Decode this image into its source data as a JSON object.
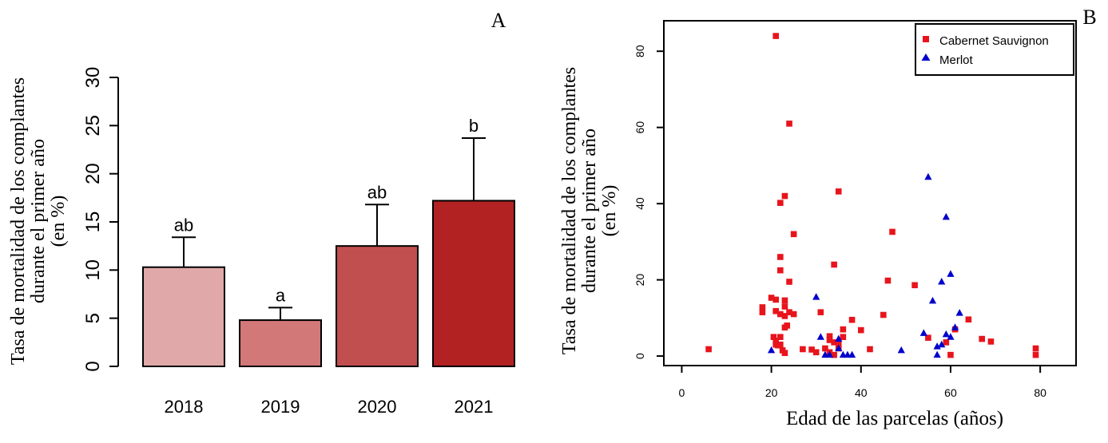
{
  "chart_data": [
    {
      "type": "bar",
      "panel_label": "A",
      "categories": [
        "2018",
        "2019",
        "2020",
        "2021"
      ],
      "values": [
        10.3,
        4.8,
        12.5,
        17.2
      ],
      "error_upper": [
        13.4,
        6.1,
        16.8,
        23.7
      ],
      "significance": [
        "ab",
        "a",
        "ab",
        "b"
      ],
      "colors": [
        "#e0a8a8",
        "#d27878",
        "#c24f4f",
        "#b22222"
      ],
      "ylabel_lines": [
        "Tasa de mortalidad de los complantes",
        "durante el primer año",
        "(en %)"
      ],
      "xlabel": "",
      "ylim": [
        0,
        30
      ],
      "yticks": [
        "0",
        "5",
        "10",
        "15",
        "20",
        "25",
        "30"
      ]
    },
    {
      "type": "scatter",
      "panel_label": "B",
      "xlabel": "Edad de las parcelas (años)",
      "ylabel_lines": [
        "Tasa de mortalidad de los complantes",
        "durante el primer año",
        "(en %)"
      ],
      "xlim": [
        -4,
        88
      ],
      "ylim": [
        -2.5,
        88
      ],
      "xticks": [
        "0",
        "20",
        "40",
        "60",
        "80"
      ],
      "yticks": [
        "0",
        "20",
        "40",
        "60",
        "80"
      ],
      "legend_position": "top-right",
      "series": [
        {
          "name": "Cabernet Sauvignon",
          "color": "#e8141c",
          "marker": "square",
          "points": [
            [
              6,
              1.8
            ],
            [
              18,
              11.5
            ],
            [
              18,
              12.8
            ],
            [
              20,
              15.3
            ],
            [
              20.5,
              5
            ],
            [
              21,
              84
            ],
            [
              21,
              14.8
            ],
            [
              21,
              11.8
            ],
            [
              21,
              4
            ],
            [
              21,
              3
            ],
            [
              21.5,
              2.8
            ],
            [
              22,
              40.2
            ],
            [
              22,
              26
            ],
            [
              22,
              22.5
            ],
            [
              22,
              11
            ],
            [
              22,
              5
            ],
            [
              22,
              3
            ],
            [
              22.5,
              1.5
            ],
            [
              23,
              42
            ],
            [
              23,
              14.6
            ],
            [
              23,
              13
            ],
            [
              23,
              10.5
            ],
            [
              23,
              7.5
            ],
            [
              23,
              0.8
            ],
            [
              23.5,
              8
            ],
            [
              24,
              61
            ],
            [
              24,
              19.5
            ],
            [
              24,
              11.5
            ],
            [
              25,
              32
            ],
            [
              25,
              11
            ],
            [
              27,
              1.8
            ],
            [
              29,
              1.7
            ],
            [
              30,
              1
            ],
            [
              31,
              11.5
            ],
            [
              32,
              2
            ],
            [
              33,
              5.2
            ],
            [
              33,
              4.2
            ],
            [
              33,
              1
            ],
            [
              34,
              24
            ],
            [
              34,
              3.6
            ],
            [
              34,
              0.3
            ],
            [
              35,
              43.2
            ],
            [
              35,
              3
            ],
            [
              35,
              2
            ],
            [
              36,
              7
            ],
            [
              36,
              5
            ],
            [
              38,
              9.5
            ],
            [
              40,
              6.8
            ],
            [
              42,
              1.8
            ],
            [
              45,
              10.8
            ],
            [
              46,
              19.8
            ],
            [
              47,
              32.6
            ],
            [
              52,
              18.6
            ],
            [
              55,
              4.8
            ],
            [
              59,
              3.6
            ],
            [
              60,
              0.3
            ],
            [
              61,
              7
            ],
            [
              64,
              9.6
            ],
            [
              67,
              4.5
            ],
            [
              69,
              3.8
            ],
            [
              79,
              2
            ],
            [
              79,
              0.3
            ]
          ]
        },
        {
          "name": "Merlot",
          "color": "#0000cc",
          "marker": "triangle",
          "points": [
            [
              20,
              1.5
            ],
            [
              30,
              15.5
            ],
            [
              31,
              5
            ],
            [
              32,
              0.3
            ],
            [
              33,
              0.3
            ],
            [
              35,
              4.5
            ],
            [
              35,
              2
            ],
            [
              36,
              0.3
            ],
            [
              37,
              0.3
            ],
            [
              38,
              0.3
            ],
            [
              49,
              1.5
            ],
            [
              54,
              6
            ],
            [
              55,
              47
            ],
            [
              56,
              14.5
            ],
            [
              57,
              0.3
            ],
            [
              57,
              2.5
            ],
            [
              58,
              3
            ],
            [
              58,
              19.5
            ],
            [
              59,
              36.5
            ],
            [
              59,
              5.7
            ],
            [
              60,
              5
            ],
            [
              60,
              21.5
            ],
            [
              61,
              7.5
            ],
            [
              62,
              11.3
            ]
          ]
        }
      ]
    }
  ]
}
